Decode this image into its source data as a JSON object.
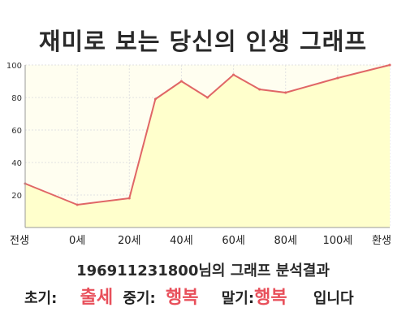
{
  "title": "재미로 보는 당신의 인생 그래프",
  "chart_data": {
    "type": "area",
    "x_tick_labels": [
      "전생",
      "0세",
      "20세",
      "40세",
      "60세",
      "80세",
      "100세",
      "환생"
    ],
    "y_ticks": [
      20,
      40,
      60,
      80,
      100
    ],
    "ylim": [
      0,
      100
    ],
    "points": [
      {
        "x": "전생",
        "y": 27
      },
      {
        "x": "0세",
        "y": 14
      },
      {
        "x": "20세",
        "y": 18
      },
      {
        "x": "30세",
        "y": 79
      },
      {
        "x": "40세",
        "y": 90
      },
      {
        "x": "50세",
        "y": 80
      },
      {
        "x": "60세",
        "y": 94
      },
      {
        "x": "70세",
        "y": 85
      },
      {
        "x": "80세",
        "y": 83
      },
      {
        "x": "100세",
        "y": 92
      },
      {
        "x": "환생",
        "y": 100
      }
    ],
    "grid": true,
    "line_color": "#e06666",
    "fill_color": "#ffffcc"
  },
  "summary": "196911231800님의 그래프 분석결과",
  "result": {
    "early_label": "초기:",
    "early_value": "출세",
    "middle_label": "중기:",
    "middle_value": "행복",
    "late_label": "말기:",
    "late_value": "행복",
    "ending": "입니다"
  }
}
